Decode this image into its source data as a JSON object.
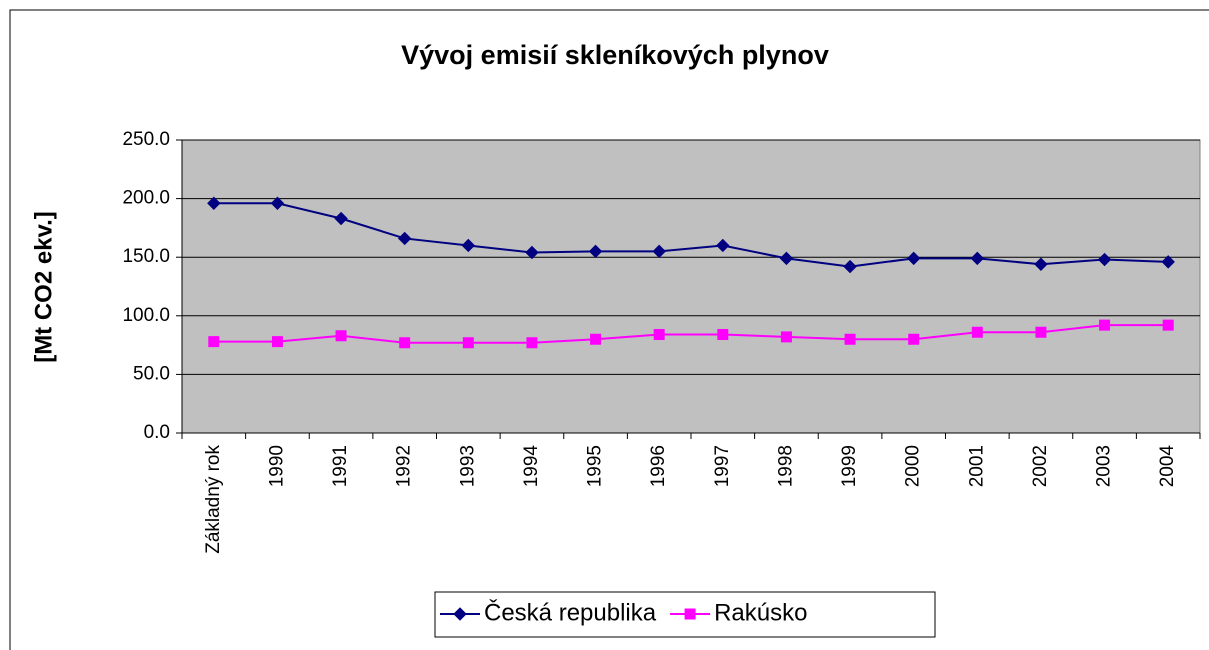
{
  "chart_data": {
    "type": "line",
    "title": "Vývoj emisií skleníkových plynov",
    "y_label": "[Mt CO2 ekv.]",
    "categories": [
      "Základný rok",
      "1990",
      "1991",
      "1992",
      "1993",
      "1994",
      "1995",
      "1996",
      "1997",
      "1998",
      "1999",
      "2000",
      "2001",
      "2002",
      "2003",
      "2004"
    ],
    "series": [
      {
        "name": "Česká republika",
        "color": "#000080",
        "marker": "diamond",
        "values": [
          196,
          196,
          183,
          166,
          160,
          154,
          155,
          155,
          160,
          149,
          142,
          149,
          149,
          144,
          148,
          146
        ]
      },
      {
        "name": "Rakúsko",
        "color": "#ff00ff",
        "marker": "square",
        "values": [
          78,
          78,
          83,
          77,
          77,
          77,
          80,
          84,
          84,
          82,
          80,
          80,
          86,
          86,
          92,
          92
        ]
      }
    ],
    "ylim": [
      0,
      250
    ],
    "yticks": [
      {
        "value": 0,
        "label": "0.0"
      },
      {
        "value": 50,
        "label": "50.0"
      },
      {
        "value": 100,
        "label": "100.0"
      },
      {
        "value": 150,
        "label": "150.0"
      },
      {
        "value": 200,
        "label": "200.0"
      },
      {
        "value": 250,
        "label": "250.0"
      }
    ],
    "grid": true,
    "legend": "bottom"
  }
}
